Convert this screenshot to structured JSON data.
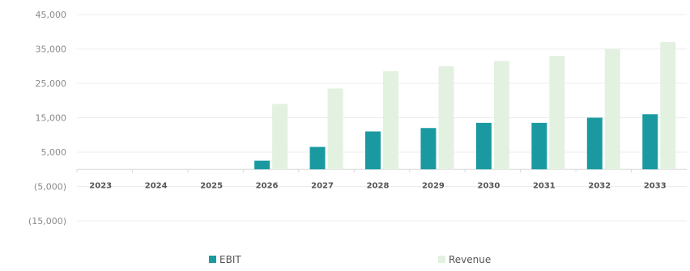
{
  "chart_data": {
    "type": "bar",
    "title": "",
    "xlabel": "",
    "ylabel": "",
    "categories": [
      "2023",
      "2024",
      "2025",
      "2026",
      "2027",
      "2028",
      "2029",
      "2030",
      "2031",
      "2032",
      "2033"
    ],
    "series": [
      {
        "name": "EBIT",
        "color": "#1a9aa0",
        "values": [
          0,
          0,
          0,
          2500,
          6500,
          11000,
          12000,
          13500,
          13500,
          15000,
          16000
        ]
      },
      {
        "name": "Revenue",
        "color": "#e3f1e1",
        "values": [
          0,
          0,
          0,
          19000,
          23500,
          28500,
          30000,
          31500,
          33000,
          35000,
          37000
        ]
      }
    ],
    "ylim": [
      -15000,
      45000
    ],
    "yticks": [
      -15000,
      -5000,
      5000,
      15000,
      25000,
      35000,
      45000
    ],
    "ytick_labels": [
      "(15,000)",
      "(5,000)",
      "5,000",
      "15,000",
      "25,000",
      "35,000",
      "45,000"
    ],
    "grid": true,
    "legend": "bottom"
  }
}
